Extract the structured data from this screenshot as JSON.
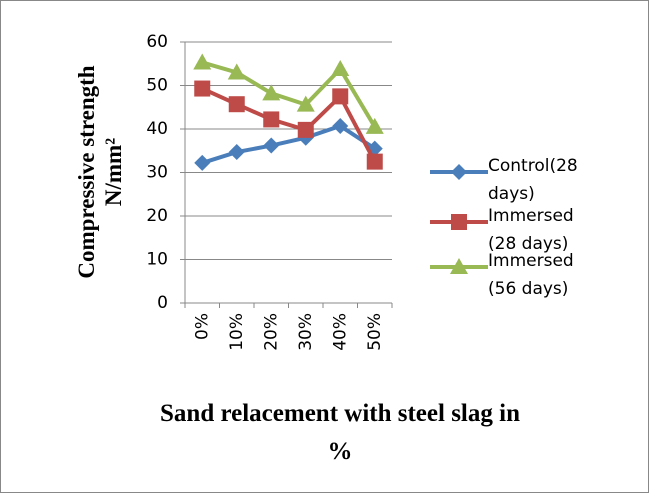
{
  "chart_data": {
    "type": "line",
    "x_label": "Sand relacement with steel slag in %",
    "y_label": "Compressive strength N/mm²",
    "categories": [
      "0%",
      "10%",
      "20%",
      "30%",
      "40%",
      "50%"
    ],
    "series": [
      {
        "name": "Control(28days)",
        "color": "#4a7ebb",
        "marker": "diamond",
        "values": [
          32.2,
          34.7,
          36.2,
          38.0,
          40.7,
          35.5
        ]
      },
      {
        "name": "Immersed(28 days)",
        "color": "#be4b48",
        "marker": "square",
        "values": [
          49.3,
          45.7,
          42.2,
          39.8,
          47.5,
          32.5
        ]
      },
      {
        "name": "Immersed(56 days)",
        "color": "#98b954",
        "marker": "triangle",
        "values": [
          55.3,
          53.0,
          48.2,
          45.6,
          53.8,
          40.5
        ]
      }
    ],
    "ylim": [
      0,
      60
    ],
    "yticks": [
      0,
      10,
      20,
      30,
      40,
      50,
      60
    ],
    "grid": true,
    "legend": "right"
  }
}
